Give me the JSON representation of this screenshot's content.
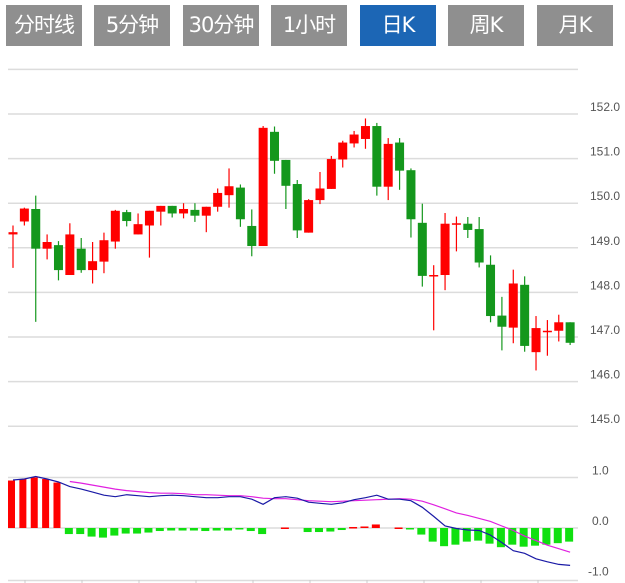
{
  "tabs": [
    {
      "label": "分时线",
      "active": false
    },
    {
      "label": "5分钟",
      "active": false
    },
    {
      "label": "30分钟",
      "active": false
    },
    {
      "label": "1小时",
      "active": false
    },
    {
      "label": "日K",
      "active": true
    },
    {
      "label": "周K",
      "active": false
    },
    {
      "label": "月K",
      "active": false
    }
  ],
  "colors": {
    "up": "#ff0000",
    "down": "#14971c",
    "active_tab": "#1c66b5",
    "tab": "#8f8f8f",
    "dif": "#1a1aa6",
    "dea": "#e020e0",
    "hist_up": "#ff0000",
    "hist_down": "#10e010"
  },
  "chart_data": [
    {
      "type": "candlestick",
      "ylim": [
        145,
        153
      ],
      "yticks": [
        "152.0",
        "151.0",
        "150.0",
        "149.0",
        "148.0",
        "147.0",
        "146.0",
        "145.0"
      ],
      "grid": true,
      "ohlc": [
        [
          149.3,
          149.5,
          148.55,
          149.35
        ],
        [
          149.59,
          149.9,
          149.5,
          149.88
        ],
        [
          149.87,
          150.17,
          147.34,
          148.98
        ],
        [
          148.98,
          149.3,
          148.74,
          149.13
        ],
        [
          149.06,
          149.15,
          148.27,
          148.5
        ],
        [
          148.39,
          149.55,
          148.39,
          149.3
        ],
        [
          148.98,
          149.22,
          148.44,
          148.5
        ],
        [
          148.5,
          149.13,
          148.2,
          148.7
        ],
        [
          148.69,
          149.34,
          148.43,
          149.17
        ],
        [
          149.14,
          149.85,
          148.98,
          149.83
        ],
        [
          149.8,
          149.85,
          149.48,
          149.6
        ],
        [
          149.3,
          149.77,
          149.3,
          149.53
        ],
        [
          149.5,
          149.83,
          148.78,
          149.83
        ],
        [
          149.81,
          149.94,
          149.5,
          149.94
        ],
        [
          149.94,
          149.94,
          149.68,
          149.77
        ],
        [
          149.77,
          150.0,
          149.66,
          149.87
        ],
        [
          149.85,
          150.0,
          149.58,
          149.72
        ],
        [
          149.72,
          149.92,
          149.35,
          149.92
        ],
        [
          149.92,
          150.33,
          149.81,
          150.23
        ],
        [
          150.18,
          150.78,
          149.9,
          150.38
        ],
        [
          150.35,
          150.42,
          149.47,
          149.64
        ],
        [
          149.49,
          149.86,
          148.81,
          149.04
        ],
        [
          149.04,
          151.73,
          149.04,
          151.69
        ],
        [
          151.6,
          151.72,
          150.66,
          150.95
        ],
        [
          150.97,
          150.97,
          149.87,
          150.39
        ],
        [
          150.43,
          150.52,
          149.22,
          149.39
        ],
        [
          149.34,
          150.09,
          149.34,
          150.07
        ],
        [
          150.07,
          150.7,
          149.98,
          150.33
        ],
        [
          150.32,
          151.06,
          150.32,
          150.99
        ],
        [
          150.98,
          151.4,
          150.8,
          151.36
        ],
        [
          151.34,
          151.62,
          151.25,
          151.54
        ],
        [
          151.44,
          151.9,
          151.22,
          151.73
        ],
        [
          151.73,
          151.8,
          150.17,
          150.37
        ],
        [
          150.37,
          151.46,
          150.07,
          151.33
        ],
        [
          151.36,
          151.46,
          150.3,
          150.73
        ],
        [
          150.74,
          150.78,
          149.23,
          149.64
        ],
        [
          149.56,
          149.99,
          148.13,
          148.37
        ],
        [
          148.38,
          148.61,
          147.15,
          148.39
        ],
        [
          148.39,
          149.78,
          148.05,
          149.54
        ],
        [
          149.54,
          149.7,
          148.92,
          149.55
        ],
        [
          149.54,
          149.69,
          149.22,
          149.4
        ],
        [
          149.42,
          149.69,
          148.56,
          148.67
        ],
        [
          148.62,
          148.83,
          147.33,
          147.47
        ],
        [
          147.48,
          147.9,
          146.7,
          147.23
        ],
        [
          147.21,
          148.51,
          146.86,
          148.2
        ],
        [
          148.17,
          148.36,
          146.67,
          146.8
        ],
        [
          146.66,
          147.47,
          146.25,
          147.2
        ],
        [
          147.13,
          147.38,
          146.58,
          147.14
        ],
        [
          147.14,
          147.5,
          146.9,
          147.33
        ],
        [
          147.33,
          147.33,
          146.82,
          146.87
        ]
      ]
    },
    {
      "type": "macd",
      "ylim": [
        -1.0,
        1.0
      ],
      "yticks": [
        "1.0",
        "0.0",
        "-1.0"
      ],
      "histogram": [
        0.94,
        0.97,
        1.0,
        0.97,
        0.9,
        -0.12,
        -0.12,
        -0.17,
        -0.19,
        -0.15,
        -0.11,
        -0.11,
        -0.09,
        -0.06,
        -0.05,
        -0.05,
        -0.05,
        -0.06,
        -0.05,
        -0.05,
        -0.03,
        -0.06,
        -0.12,
        0,
        0.01,
        0,
        -0.08,
        -0.08,
        -0.07,
        -0.04,
        0.02,
        0.03,
        0.07,
        0,
        0.01,
        -0.01,
        -0.13,
        -0.27,
        -0.36,
        -0.33,
        -0.27,
        -0.25,
        -0.31,
        -0.38,
        -0.33,
        -0.37,
        -0.35,
        -0.33,
        -0.3,
        -0.27
      ],
      "dif": [
        0.95,
        0.97,
        1.02,
        0.97,
        0.91,
        0.82,
        0.77,
        0.71,
        0.65,
        0.62,
        0.66,
        0.64,
        0.62,
        0.64,
        0.65,
        0.64,
        0.62,
        0.6,
        0.6,
        0.62,
        0.62,
        0.57,
        0.47,
        0.6,
        0.62,
        0.59,
        0.51,
        0.49,
        0.47,
        0.5,
        0.56,
        0.6,
        0.65,
        0.57,
        0.57,
        0.54,
        0.41,
        0.23,
        0.04,
        -0.01,
        -0.04,
        -0.05,
        -0.14,
        -0.29,
        -0.45,
        -0.5,
        -0.61,
        -0.67,
        -0.72,
        -0.74
      ],
      "dea": [
        null,
        null,
        null,
        null,
        null,
        0.92,
        0.89,
        0.85,
        0.81,
        0.77,
        0.74,
        0.72,
        0.7,
        0.69,
        0.69,
        0.68,
        0.66,
        0.66,
        0.65,
        0.64,
        0.64,
        0.62,
        0.59,
        0.58,
        0.58,
        0.56,
        0.54,
        0.53,
        0.52,
        0.53,
        0.54,
        0.55,
        0.56,
        0.57,
        0.58,
        0.57,
        0.53,
        0.46,
        0.38,
        0.3,
        0.25,
        0.19,
        0.13,
        0.04,
        -0.05,
        -0.16,
        -0.25,
        -0.34,
        -0.41,
        -0.48
      ]
    }
  ]
}
